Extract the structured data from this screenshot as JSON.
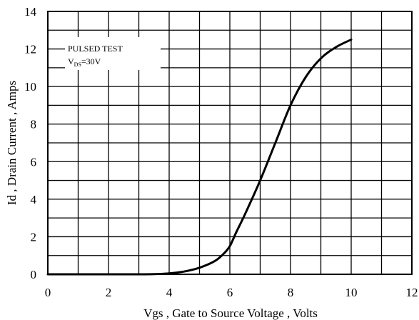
{
  "chart_data": {
    "type": "line",
    "title": "",
    "xlabel": "Vgs , Gate to Source Voltage ,   Volts",
    "ylabel": "Id , Drain Current , Amps",
    "xlim": [
      0,
      12
    ],
    "ylim": [
      0,
      14
    ],
    "grid": true,
    "xticks": [
      0,
      2,
      4,
      6,
      8,
      10,
      12
    ],
    "yticks": [
      0,
      2,
      4,
      6,
      8,
      10,
      12,
      14
    ],
    "annotation": {
      "line1": "PULSED    TEST",
      "line2_main": "V",
      "line2_sub": "DS",
      "line2_rest": "=30V"
    },
    "series": [
      {
        "x": [
          0,
          1,
          2,
          3,
          3.5,
          4,
          4.5,
          5,
          5.5,
          5.8,
          6.0,
          6.2,
          6.5,
          7.0,
          7.5,
          8.0,
          8.5,
          9.0,
          9.5,
          10.0
        ],
        "y": [
          0,
          0,
          0,
          0,
          0.01,
          0.05,
          0.15,
          0.35,
          0.7,
          1.1,
          1.5,
          2.2,
          3.2,
          5.0,
          7.0,
          9.0,
          10.5,
          11.5,
          12.1,
          12.5
        ]
      }
    ]
  },
  "colors": {
    "axis": "#000000",
    "grid": "#000000",
    "line": "#000000",
    "background": "#ffffff"
  }
}
